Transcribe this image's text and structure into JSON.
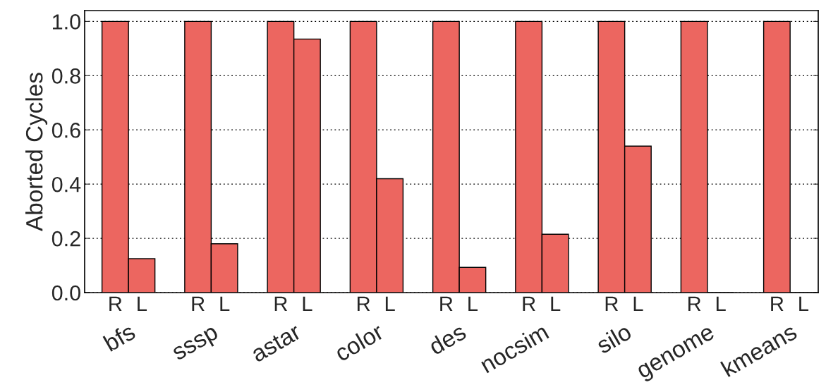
{
  "chart_data": {
    "type": "bar",
    "ylabel": "Aborted Cycles",
    "categories": [
      "bfs",
      "sssp",
      "astar",
      "color",
      "des",
      "nocsim",
      "silo",
      "genome",
      "kmeans"
    ],
    "series": [
      {
        "name": "R",
        "color": "#ec6660",
        "values": [
          1.0,
          1.0,
          1.0,
          1.0,
          1.0,
          1.0,
          1.0,
          1.0,
          1.0
        ]
      },
      {
        "name": "L",
        "color": "#ec6660",
        "values": [
          0.125,
          0.18,
          0.935,
          0.42,
          0.093,
          0.215,
          0.54,
          0.0,
          0.0
        ]
      }
    ],
    "ylim": [
      0,
      1.04
    ],
    "yticks": [
      {
        "value": 0,
        "label": "0.0"
      },
      {
        "value": 0.2,
        "label": "0.2"
      },
      {
        "value": 0.4,
        "label": "0.4"
      },
      {
        "value": 0.6,
        "label": "0.6"
      },
      {
        "value": 0.8,
        "label": "0.8"
      },
      {
        "value": 1.0,
        "label": "1.0"
      }
    ],
    "grid": "y",
    "legend": false
  }
}
